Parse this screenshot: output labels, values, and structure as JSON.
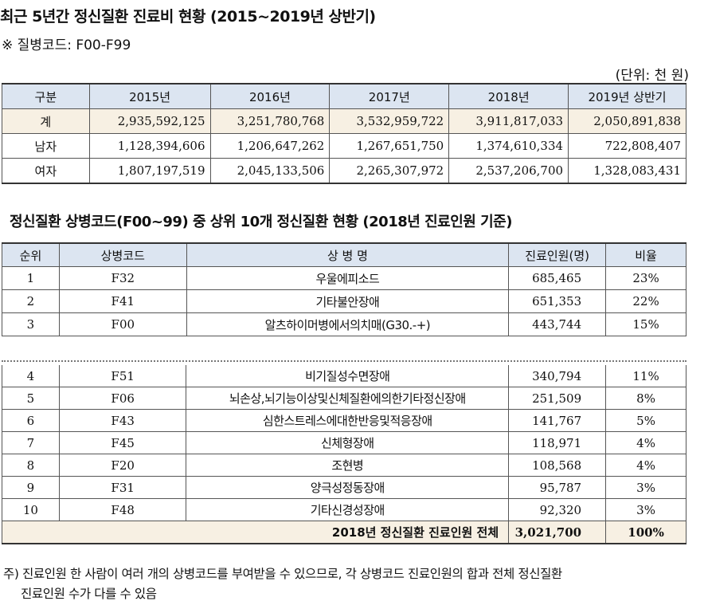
{
  "title1": "최근 5년간 정신질환 진료비 현황 (2015~2019년 상반기)",
  "subnote": "※ 질병코드:  F00-F99",
  "unit": "(단위: 천 원)",
  "table1": {
    "headers": [
      "구분",
      "2015년",
      "2016년",
      "2017년",
      "2018년",
      "2019년 상반기"
    ],
    "rows": [
      [
        "계",
        "2,935,592,125",
        "3,251,780,768",
        "3,532,959,722",
        "3,911,817,033",
        "2,050,891,838"
      ],
      [
        "남자",
        "1,128,394,606",
        "1,206,647,262",
        "1,267,651,750",
        "1,374,610,334",
        "722,808,407"
      ],
      [
        "여자",
        "1,807,197,519",
        "2,045,133,506",
        "2,265,307,972",
        "2,537,206,700",
        "1,328,083,431"
      ]
    ]
  },
  "title2": "정신질환 상병코드(F00~99) 중 상위 10개 정신질환 현황 (2018년 진료인원 기준)",
  "table2": {
    "headers": [
      "순위",
      "상병코드",
      "상  병  명",
      "진료인원(명)",
      "비율"
    ],
    "rows": [
      [
        "1",
        "F32",
        "우울에피소드",
        "685,465",
        "23%"
      ],
      [
        "2",
        "F41",
        "기타불안장애",
        "651,353",
        "22%"
      ],
      [
        "3",
        "F00",
        "알츠하이머병에서의치매(G30.-+)",
        "443,744",
        "15%"
      ]
    ],
    "rows2": [
      [
        "4",
        "F51",
        "비기질성수면장애",
        "340,794",
        "11%"
      ],
      [
        "5",
        "F06",
        "뇌손상,뇌기능이상및신체질환에의한기타정신장애",
        "251,509",
        "8%"
      ],
      [
        "6",
        "F43",
        "심한스트레스에대한반응및적응장애",
        "141,767",
        "5%"
      ],
      [
        "7",
        "F45",
        "신체형장애",
        "118,971",
        "4%"
      ],
      [
        "8",
        "F20",
        "조현병",
        "108,568",
        "4%"
      ],
      [
        "9",
        "F31",
        "양극성정동장애",
        "95,787",
        "3%"
      ],
      [
        "10",
        "F48",
        "기타신경성장애",
        "92,320",
        "3%"
      ]
    ],
    "total": {
      "label": "2018년 정신질환 진료인원 전체",
      "count": "3,021,700",
      "ratio": "100%"
    }
  },
  "footnote": {
    "line1": "주) 진료인원 한 사람이 여러 개의 상병코드를 부여받을 수 있으므로, 각 상병코드 진료인원의 합과 전체 정신질환",
    "line2": "진료인원 수가 다를 수 있음"
  }
}
